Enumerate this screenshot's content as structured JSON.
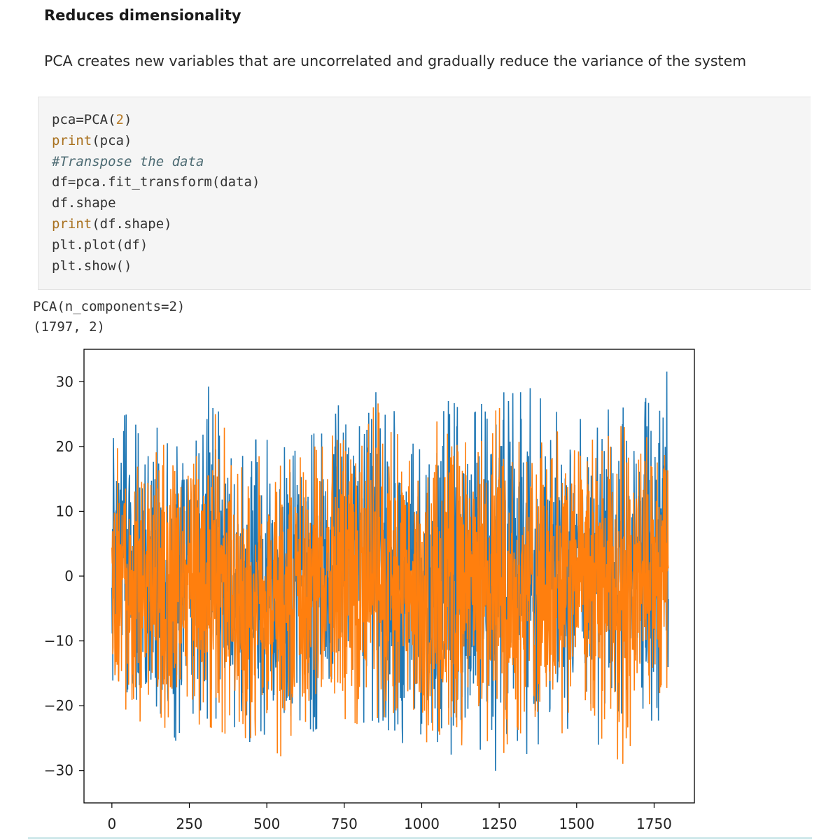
{
  "section": {
    "heading": "Reduces dimensionality",
    "description": "PCA creates new variables that are uncorrelated and gradually reduce the variance of the system"
  },
  "code_cell": {
    "lines": [
      [
        {
          "t": "pca=PCA(",
          "c": ""
        },
        {
          "t": "2",
          "c": "num"
        },
        {
          "t": ")",
          "c": ""
        }
      ],
      [
        {
          "t": "print",
          "c": "builtin"
        },
        {
          "t": "(pca)",
          "c": ""
        }
      ],
      [
        {
          "t": "#Transpose the data",
          "c": "comment"
        }
      ],
      [
        {
          "t": "df=pca.fit_transform(data)",
          "c": ""
        }
      ],
      [
        {
          "t": "df.shape",
          "c": ""
        }
      ],
      [
        {
          "t": "print",
          "c": "builtin"
        },
        {
          "t": "(df.shape)",
          "c": ""
        }
      ],
      [
        {
          "t": "plt.plot(df)",
          "c": ""
        }
      ],
      [
        {
          "t": "plt.show()",
          "c": ""
        }
      ]
    ]
  },
  "output": {
    "lines": [
      "PCA(n_components=2)",
      "(1797, 2)"
    ]
  },
  "chart_data": {
    "type": "line",
    "title": "",
    "xlabel": "",
    "ylabel": "",
    "xlim": [
      -90,
      1880
    ],
    "ylim": [
      -35,
      35
    ],
    "x_ticks": [
      0,
      250,
      500,
      750,
      1000,
      1250,
      1500,
      1750
    ],
    "x_tick_labels": [
      "0",
      "250",
      "500",
      "750",
      "1000",
      "1250",
      "1500",
      "1750"
    ],
    "y_ticks": [
      30,
      20,
      10,
      0,
      -10,
      -20,
      -30
    ],
    "y_tick_labels": [
      "30",
      "20",
      "10",
      "0",
      "−10",
      "−20",
      "−30"
    ],
    "grid": false,
    "legend": "none",
    "n_points": 1797,
    "series": [
      {
        "color": "#1f77b4",
        "envelope": {
          "x": [
            0,
            50,
            100,
            150,
            200,
            250,
            300,
            350,
            400,
            450,
            500,
            550,
            600,
            650,
            700,
            750,
            800,
            850,
            900,
            950,
            1000,
            1050,
            1100,
            1150,
            1200,
            1250,
            1300,
            1350,
            1400,
            1450,
            1500,
            1550,
            1600,
            1650,
            1700,
            1750,
            1796
          ],
          "upper": [
            24,
            25,
            22,
            23,
            22,
            23,
            29,
            30,
            22,
            21,
            21,
            22,
            20,
            22,
            22,
            29,
            23,
            30,
            27,
            20,
            21,
            27,
            27,
            24,
            27,
            30,
            28,
            29,
            28,
            26,
            24,
            25,
            27,
            26,
            27,
            28,
            32
          ],
          "lower": [
            -23,
            -24,
            -23,
            -24,
            -26,
            -21,
            -22,
            -22,
            -25,
            -27,
            -24,
            -21,
            -22,
            -24,
            -22,
            -21,
            -24,
            -23,
            -25,
            -26,
            -26,
            -30,
            -31,
            -26,
            -27,
            -31,
            -29,
            -27,
            -25,
            -27,
            -22,
            -26,
            -26,
            -27,
            -24,
            -22,
            -23
          ]
        }
      },
      {
        "color": "#ff7f0e",
        "envelope": {
          "x": [
            0,
            50,
            100,
            150,
            200,
            250,
            300,
            350,
            400,
            450,
            500,
            550,
            600,
            650,
            700,
            750,
            800,
            850,
            900,
            950,
            1000,
            1050,
            1100,
            1150,
            1200,
            1250,
            1300,
            1350,
            1400,
            1450,
            1500,
            1550,
            1600,
            1650,
            1700,
            1750,
            1796
          ],
          "upper": [
            21,
            22,
            19,
            21,
            22,
            21,
            25,
            25,
            17,
            18,
            19,
            18,
            18,
            20,
            20,
            27,
            19,
            27,
            25,
            18,
            17,
            24,
            24,
            23,
            24,
            26,
            22,
            24,
            23,
            22,
            19,
            21,
            24,
            23,
            23,
            20,
            20
          ],
          "lower": [
            -20,
            -26,
            -24,
            -23,
            -24,
            -25,
            -23,
            -24,
            -25,
            -25,
            -26,
            -28,
            -22,
            -23,
            -20,
            -22,
            -23,
            -24,
            -23,
            -24,
            -25,
            -27,
            -29,
            -24,
            -25,
            -27,
            -28,
            -26,
            -25,
            -28,
            -21,
            -25,
            -27,
            -29,
            -23,
            -22,
            -21
          ]
        }
      }
    ]
  }
}
